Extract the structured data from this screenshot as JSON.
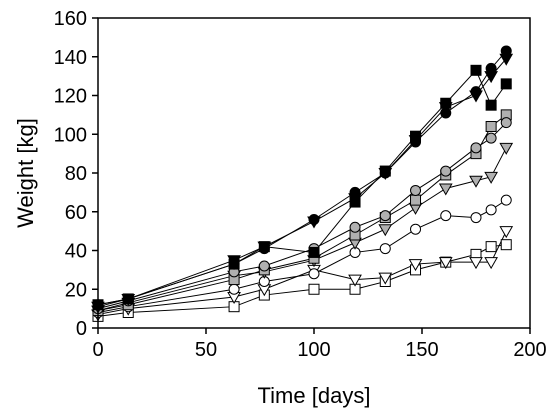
{
  "chart_data": {
    "type": "line",
    "title": "",
    "xlabel": "Time [days]",
    "ylabel": "Weight [kg]",
    "xlim": [
      0,
      200
    ],
    "ylim": [
      0,
      160
    ],
    "xticks": [
      0,
      50,
      100,
      150,
      200
    ],
    "yticks": [
      0,
      20,
      40,
      60,
      80,
      100,
      120,
      140,
      160
    ],
    "grid": false,
    "legend": "none",
    "series": [
      {
        "marker": "circle",
        "fill": "#000000",
        "x": [
          0,
          14,
          63,
          77,
          100,
          119,
          133,
          147,
          161,
          175,
          182,
          189
        ],
        "y": [
          12,
          15,
          33,
          41,
          56,
          70,
          80,
          96,
          111,
          122,
          134,
          143
        ]
      },
      {
        "marker": "triangle-down",
        "fill": "#000000",
        "x": [
          0,
          14,
          63,
          77,
          100,
          119,
          133,
          147,
          161,
          175,
          182,
          189
        ],
        "y": [
          11,
          15,
          35,
          42,
          55,
          67,
          80,
          97,
          114,
          120,
          130,
          139
        ]
      },
      {
        "marker": "square",
        "fill": "#000000",
        "x": [
          0,
          14,
          63,
          77,
          100,
          119,
          133,
          147,
          161,
          175,
          182,
          189
        ],
        "y": [
          12,
          15,
          33,
          42,
          39,
          65,
          81,
          99,
          116,
          133,
          115,
          126
        ]
      },
      {
        "marker": "circle",
        "fill": "#b0b0b0",
        "x": [
          0,
          14,
          63,
          77,
          100,
          119,
          133,
          147,
          161,
          175,
          182,
          189
        ],
        "y": [
          10,
          14,
          29,
          32,
          41,
          52,
          58,
          71,
          81,
          93,
          98,
          106
        ]
      },
      {
        "marker": "square",
        "fill": "#b0b0b0",
        "x": [
          0,
          14,
          63,
          77,
          100,
          119,
          133,
          147,
          161,
          175,
          182,
          189
        ],
        "y": [
          9,
          12,
          25,
          30,
          36,
          48,
          57,
          66,
          79,
          90,
          104,
          110
        ]
      },
      {
        "marker": "triangle-down",
        "fill": "#b0b0b0",
        "x": [
          0,
          14,
          63,
          77,
          100,
          119,
          133,
          147,
          161,
          175,
          182,
          189
        ],
        "y": [
          9,
          13,
          27,
          29,
          35,
          44,
          51,
          62,
          72,
          76,
          78,
          93
        ]
      },
      {
        "marker": "circle",
        "fill": "#ffffff",
        "x": [
          0,
          14,
          63,
          77,
          100,
          119,
          133,
          147,
          161,
          175,
          182,
          189
        ],
        "y": [
          8,
          11,
          20,
          24,
          28,
          39,
          41,
          51,
          58,
          57,
          61,
          66
        ]
      },
      {
        "marker": "triangle-down",
        "fill": "#ffffff",
        "x": [
          0,
          14,
          63,
          77,
          100,
          119,
          133,
          147,
          161,
          175,
          182,
          189
        ],
        "y": [
          7,
          10,
          16,
          20,
          30,
          25,
          26,
          33,
          34,
          34,
          34,
          50
        ]
      },
      {
        "marker": "square",
        "fill": "#ffffff",
        "x": [
          0,
          14,
          63,
          77,
          100,
          119,
          133,
          147,
          161,
          175,
          182,
          189
        ],
        "y": [
          6,
          8,
          11,
          17,
          20,
          20,
          24,
          30,
          34,
          38,
          42,
          43
        ]
      }
    ]
  }
}
